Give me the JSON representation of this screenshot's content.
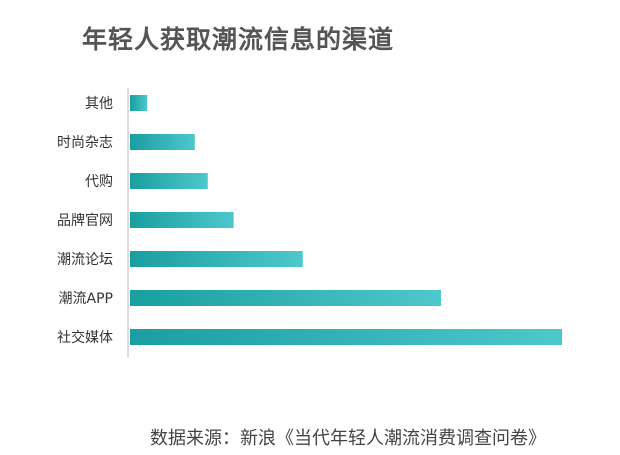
{
  "chart_data": {
    "type": "bar",
    "orientation": "horizontal",
    "title": "年轻人获取潮流信息的渠道",
    "categories": [
      "其他",
      "时尚杂志",
      "代购",
      "品牌官网",
      "潮流论坛",
      "潮流APP",
      "社交媒体"
    ],
    "values": [
      4,
      15,
      18,
      24,
      40,
      72,
      100
    ],
    "xlim": [
      0,
      100
    ],
    "grid": false,
    "legend": "none",
    "bar_colors": [
      "#1a9ea0",
      "#4dc8cc"
    ]
  },
  "source_text": "数据来源：新浪《当代年轻人潮流消费调查问卷》"
}
